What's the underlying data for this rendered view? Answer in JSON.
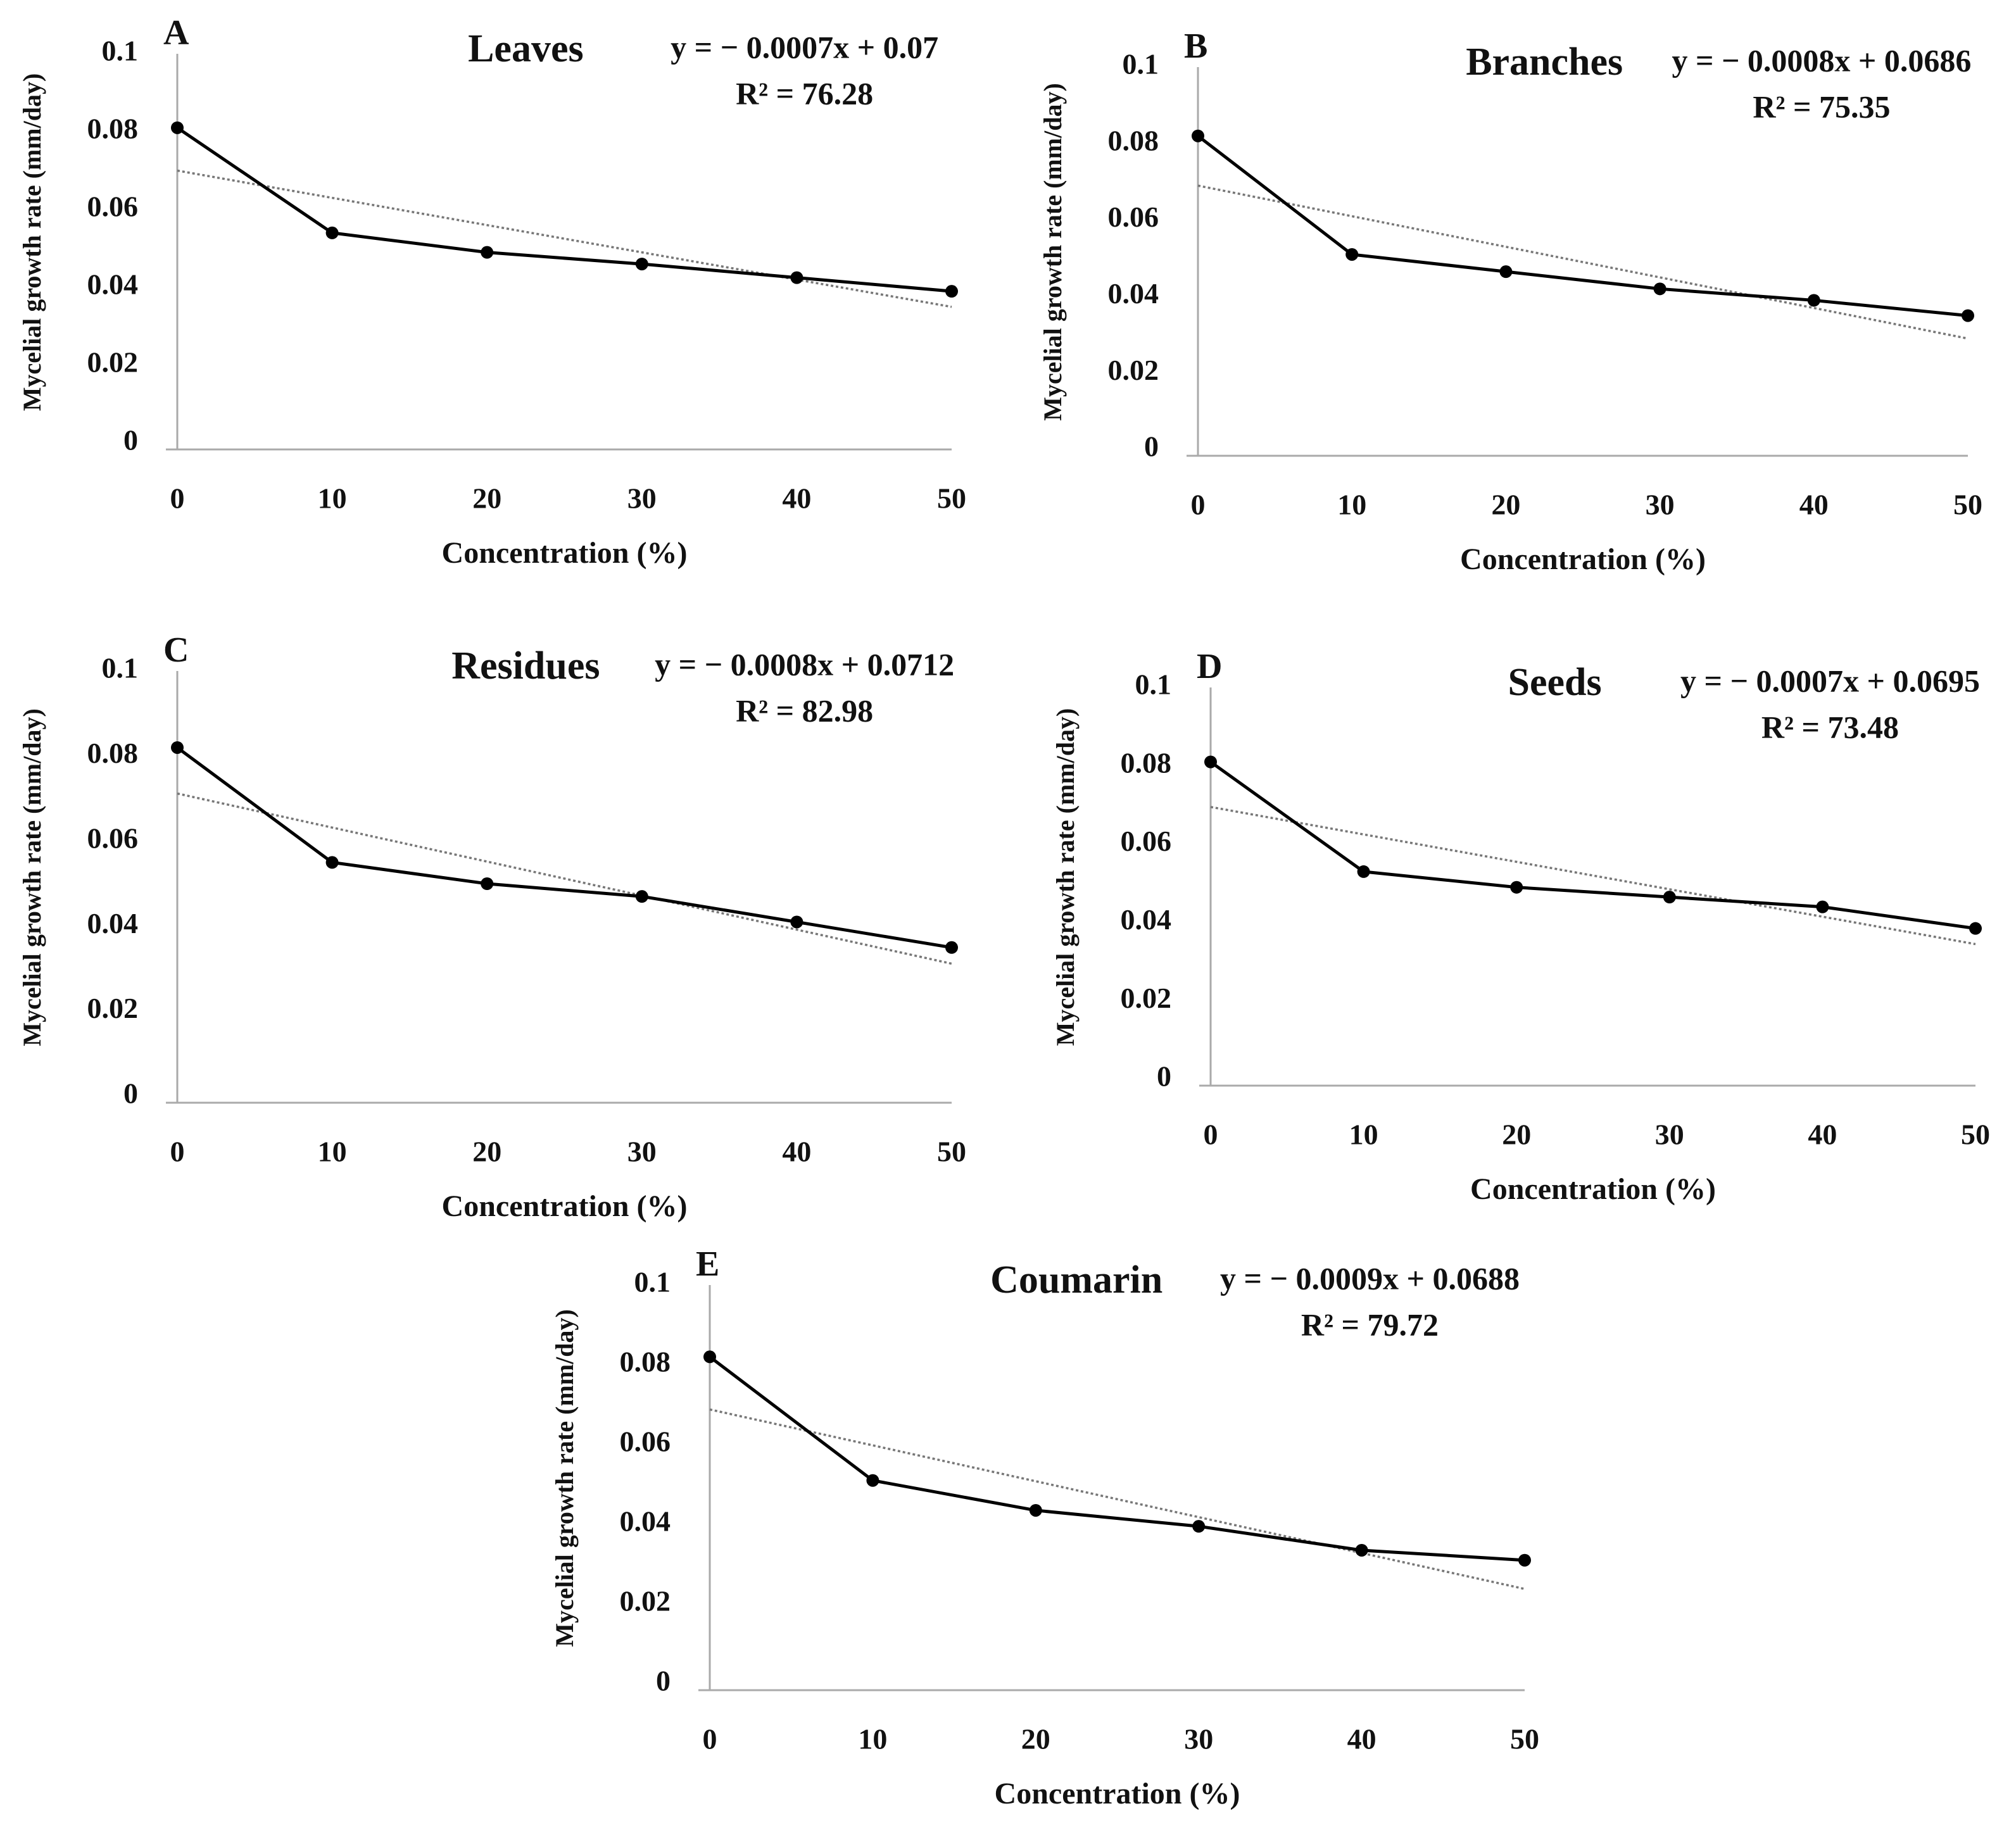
{
  "chart_data": [
    {
      "type": "line",
      "panel_label": "A",
      "title": "Leaves",
      "equation": "y = − 0.0007x + 0.07",
      "r_squared": "R² = 76.28",
      "xlabel": "Concentration (%)",
      "ylabel": "Mycelial growth rate  (mm/day)",
      "x": [
        0,
        10,
        20,
        30,
        40,
        50
      ],
      "xlim": [
        0,
        50
      ],
      "xticks": [
        0,
        10,
        20,
        30,
        40,
        50
      ],
      "ylim": [
        0,
        0.1
      ],
      "yticks": [
        0,
        0.02,
        0.04,
        0.06,
        0.08,
        0.1
      ],
      "series": [
        {
          "color": "#000000",
          "values": [
            0.081,
            0.054,
            0.049,
            0.046,
            0.0425,
            0.039
          ]
        },
        {
          "color": "#777777",
          "style": "dotted",
          "values": [
            0.07,
            0.063,
            0.056,
            0.049,
            0.042,
            0.035
          ]
        }
      ]
    },
    {
      "type": "line",
      "panel_label": "B",
      "title": "Branches",
      "equation": "y = − 0.0008x + 0.0686",
      "r_squared": "R² = 75.35",
      "xlabel": "Concentration (%)",
      "ylabel": "Mycelial growth rate  (mm/day)",
      "x": [
        0,
        10,
        20,
        30,
        40,
        50
      ],
      "xlim": [
        0,
        50
      ],
      "xticks": [
        0,
        10,
        20,
        30,
        40,
        50
      ],
      "ylim": [
        0,
        0.1
      ],
      "yticks": [
        0,
        0.02,
        0.04,
        0.06,
        0.08,
        0.1
      ],
      "series": [
        {
          "color": "#000000",
          "values": [
            0.082,
            0.051,
            0.0465,
            0.042,
            0.039,
            0.035
          ]
        },
        {
          "color": "#777777",
          "style": "dotted",
          "values": [
            0.069,
            0.061,
            0.053,
            0.045,
            0.037,
            0.029
          ]
        }
      ]
    },
    {
      "type": "line",
      "panel_label": "C",
      "title": "Residues",
      "equation": "y = − 0.0008x + 0.0712",
      "r_squared": "R² = 82.98",
      "xlabel": "Concentration (%)",
      "ylabel": "Mycelial growth rate  (mm/day)",
      "x": [
        0,
        10,
        20,
        30,
        40,
        50
      ],
      "xlim": [
        0,
        50
      ],
      "xticks": [
        0,
        10,
        20,
        30,
        40,
        50
      ],
      "ylim": [
        0,
        0.1
      ],
      "yticks": [
        0,
        0.02,
        0.04,
        0.06,
        0.08,
        0.1
      ],
      "series": [
        {
          "color": "#000000",
          "values": [
            0.082,
            0.055,
            0.05,
            0.047,
            0.041,
            0.035
          ]
        },
        {
          "color": "#777777",
          "style": "dotted",
          "values": [
            0.0712,
            0.0632,
            0.0552,
            0.0472,
            0.0392,
            0.0312
          ]
        }
      ]
    },
    {
      "type": "line",
      "panel_label": "D",
      "title": "Seeds",
      "equation": "y = − 0.0007x + 0.0695",
      "r_squared": "R² = 73.48",
      "xlabel": "Concentration (%)",
      "ylabel": "Mycelial growth rate  (mm/day)",
      "x": [
        0,
        10,
        20,
        30,
        40,
        50
      ],
      "xlim": [
        0,
        50
      ],
      "xticks": [
        0,
        10,
        20,
        30,
        40,
        50
      ],
      "ylim": [
        0,
        0.1
      ],
      "yticks": [
        0,
        0.02,
        0.04,
        0.06,
        0.08,
        0.1
      ],
      "series": [
        {
          "color": "#000000",
          "values": [
            0.081,
            0.053,
            0.049,
            0.0465,
            0.044,
            0.0385
          ]
        },
        {
          "color": "#777777",
          "style": "dotted",
          "values": [
            0.0695,
            0.0625,
            0.0555,
            0.0485,
            0.0415,
            0.0345
          ]
        }
      ]
    },
    {
      "type": "line",
      "panel_label": "E",
      "title": "Coumarin",
      "equation": "y = − 0.0009x + 0.0688",
      "r_squared": "R² = 79.72",
      "xlabel": "Concentration (%)",
      "ylabel": "Mycelial growth rate  (mm/day)",
      "x": [
        0,
        10,
        20,
        30,
        40,
        50
      ],
      "xlim": [
        0,
        50
      ],
      "xticks": [
        0,
        10,
        20,
        30,
        40,
        50
      ],
      "ylim": [
        0,
        0.1
      ],
      "yticks": [
        0,
        0.02,
        0.04,
        0.06,
        0.08,
        0.1
      ],
      "series": [
        {
          "color": "#000000",
          "values": [
            0.082,
            0.051,
            0.0435,
            0.0395,
            0.0335,
            0.031
          ]
        },
        {
          "color": "#777777",
          "style": "dotted",
          "values": [
            0.0688,
            0.0598,
            0.0508,
            0.0418,
            0.0328,
            0.0238
          ]
        }
      ]
    }
  ]
}
